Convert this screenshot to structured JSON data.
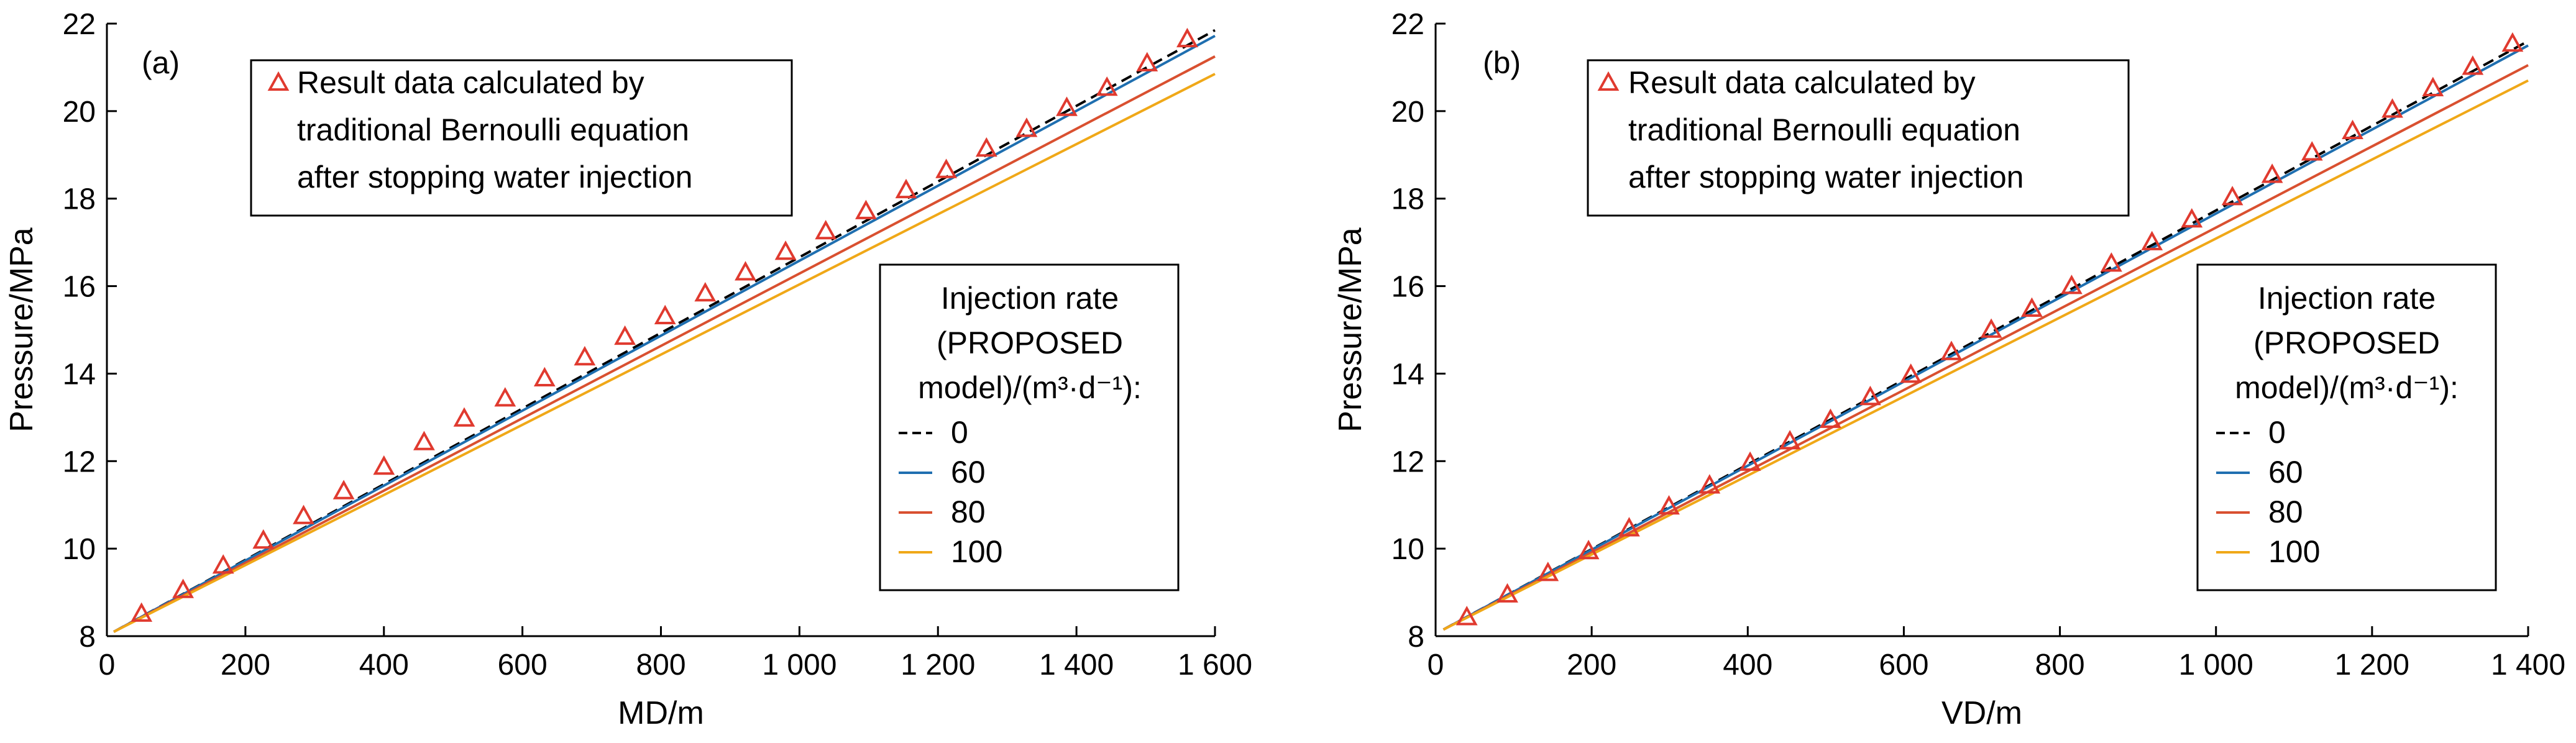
{
  "chart_data": [
    {
      "type": "line",
      "panel_label": "(a)",
      "xlabel": "MD/m",
      "ylabel": "Pressure/MPa",
      "xlim": [
        0,
        1600
      ],
      "ylim": [
        8,
        22
      ],
      "xticks": [
        0,
        200,
        400,
        600,
        800,
        1000,
        1200,
        1400,
        1600
      ],
      "xtick_labels": [
        "0",
        "200",
        "400",
        "600",
        "800",
        "1 000",
        "1 200",
        "1 400",
        "1 600"
      ],
      "yticks": [
        8,
        10,
        12,
        14,
        16,
        18,
        20,
        22
      ],
      "ytick_labels": [
        "8",
        "10",
        "12",
        "14",
        "16",
        "18",
        "20",
        "22"
      ],
      "markers_legend_lines": [
        "Result data calculated by",
        "traditional Bernoulli equation",
        "after stopping water injection"
      ],
      "markers": {
        "x": [
          50,
          110,
          168,
          226,
          284,
          342,
          400,
          458,
          516,
          575,
          632,
          690,
          748,
          806,
          864,
          922,
          980,
          1038,
          1096,
          1154,
          1212,
          1270,
          1328,
          1386,
          1444,
          1502,
          1560
        ],
        "y": [
          8.5,
          9.04,
          9.6,
          10.17,
          10.73,
          11.3,
          11.86,
          12.42,
          12.96,
          13.42,
          13.88,
          14.36,
          14.83,
          15.3,
          15.82,
          16.3,
          16.77,
          17.24,
          17.7,
          18.18,
          18.64,
          19.13,
          19.58,
          20.06,
          20.52,
          21.08,
          21.63
        ]
      },
      "series_legend_title": [
        "Injection rate",
        "(PROPOSED",
        "model)/(m³·d⁻¹):"
      ],
      "series": [
        {
          "name": "0",
          "color": "#000000",
          "dash": true,
          "x": [
            10,
            1600
          ],
          "y": [
            8.1,
            21.85
          ]
        },
        {
          "name": "60",
          "color": "#1f6fb0",
          "dash": false,
          "x": [
            10,
            1600
          ],
          "y": [
            8.1,
            21.72
          ]
        },
        {
          "name": "80",
          "color": "#d95030",
          "dash": false,
          "x": [
            10,
            1600
          ],
          "y": [
            8.1,
            21.25
          ]
        },
        {
          "name": "100",
          "color": "#f0a818",
          "dash": false,
          "x": [
            10,
            1600
          ],
          "y": [
            8.1,
            20.85
          ]
        }
      ],
      "marker_color": "#e03a2f"
    },
    {
      "type": "line",
      "panel_label": "(b)",
      "xlabel": "VD/m",
      "ylabel": "Pressure/MPa",
      "xlim": [
        0,
        1400
      ],
      "ylim": [
        8,
        22
      ],
      "xticks": [
        0,
        200,
        400,
        600,
        800,
        1000,
        1200,
        1400
      ],
      "xtick_labels": [
        "0",
        "200",
        "400",
        "600",
        "800",
        "1 000",
        "1 200",
        "1 400"
      ],
      "yticks": [
        8,
        10,
        12,
        14,
        16,
        18,
        20,
        22
      ],
      "ytick_labels": [
        "8",
        "10",
        "12",
        "14",
        "16",
        "18",
        "20",
        "22"
      ],
      "markers_legend_lines": [
        "Result data calculated by",
        "traditional Bernoulli equation",
        "after stopping water injection"
      ],
      "markers": {
        "x": [
          40,
          92,
          144,
          196,
          248,
          299,
          351,
          403,
          454,
          506,
          557,
          609,
          661,
          712,
          764,
          815,
          866,
          918,
          969,
          1021,
          1072,
          1123,
          1175,
          1226,
          1278,
          1329,
          1380
        ],
        "y": [
          8.42,
          8.94,
          9.43,
          9.93,
          10.45,
          10.95,
          11.43,
          11.95,
          12.44,
          12.93,
          13.45,
          13.96,
          14.48,
          14.99,
          15.47,
          15.99,
          16.5,
          16.99,
          17.51,
          18.02,
          18.53,
          19.04,
          19.53,
          20.02,
          20.51,
          21.0,
          21.53
        ]
      },
      "series_legend_title": [
        "Injection rate",
        "(PROPOSED",
        "model)/(m³·d⁻¹):"
      ],
      "series": [
        {
          "name": "0",
          "color": "#000000",
          "dash": true,
          "x": [
            10,
            1400
          ],
          "y": [
            8.15,
            21.6
          ]
        },
        {
          "name": "60",
          "color": "#1f6fb0",
          "dash": false,
          "x": [
            10,
            1400
          ],
          "y": [
            8.15,
            21.5
          ]
        },
        {
          "name": "80",
          "color": "#d95030",
          "dash": false,
          "x": [
            10,
            1400
          ],
          "y": [
            8.15,
            21.05
          ]
        },
        {
          "name": "100",
          "color": "#f0a818",
          "dash": false,
          "x": [
            10,
            1400
          ],
          "y": [
            8.15,
            20.7
          ]
        }
      ],
      "marker_color": "#e03a2f"
    }
  ]
}
